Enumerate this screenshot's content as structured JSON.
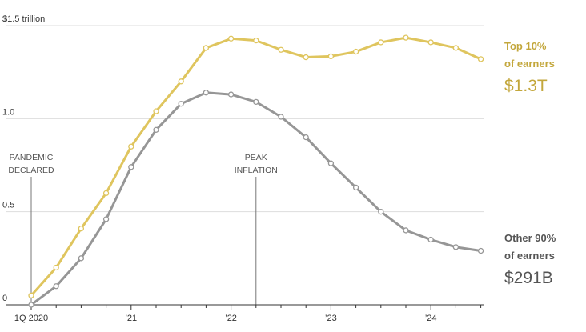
{
  "chart_data": {
    "type": "line",
    "x": [
      "1Q 2020",
      "2Q 2020",
      "3Q 2020",
      "4Q 2020",
      "1Q 2021",
      "2Q 2021",
      "3Q 2021",
      "4Q 2021",
      "1Q 2022",
      "2Q 2022",
      "3Q 2022",
      "4Q 2022",
      "1Q 2023",
      "2Q 2023",
      "3Q 2023",
      "4Q 2023",
      "1Q 2024",
      "2Q 2024",
      "3Q 2024"
    ],
    "ylim": [
      0,
      1.5
    ],
    "grid": true,
    "y_ticks": [
      {
        "value": 0,
        "label": "0"
      },
      {
        "value": 0.5,
        "label": "0.5"
      },
      {
        "value": 1.0,
        "label": "1.0"
      },
      {
        "value": 1.5,
        "label": "$1.5 trillion"
      }
    ],
    "x_tick_labels": [
      {
        "index": 0,
        "label": "1Q 2020"
      },
      {
        "index": 4,
        "label": "’21"
      },
      {
        "index": 8,
        "label": "’22"
      },
      {
        "index": 12,
        "label": "’23"
      },
      {
        "index": 16,
        "label": "’24"
      }
    ],
    "series": [
      {
        "key": "top",
        "name_line1": "Top 10%",
        "name_line2": "of earners",
        "end_value_label": "$1.3T",
        "color": "#dfc55e",
        "values": [
          0.05,
          0.2,
          0.41,
          0.6,
          0.85,
          1.04,
          1.2,
          1.38,
          1.43,
          1.42,
          1.37,
          1.33,
          1.335,
          1.36,
          1.41,
          1.435,
          1.41,
          1.38,
          1.32
        ]
      },
      {
        "key": "other",
        "name_line1": "Other 90%",
        "name_line2": "of earners",
        "end_value_label": "$291B",
        "color": "#969696",
        "values": [
          0.0,
          0.1,
          0.25,
          0.46,
          0.74,
          0.94,
          1.08,
          1.14,
          1.13,
          1.09,
          1.01,
          0.9,
          0.76,
          0.63,
          0.5,
          0.4,
          0.35,
          0.31,
          0.29
        ]
      }
    ],
    "annotations": [
      {
        "index": 0,
        "line1": "PANDEMIC",
        "line2": "DECLARED"
      },
      {
        "index": 9,
        "line1": "PEAK",
        "line2": "INFLATION"
      }
    ]
  },
  "colors": {
    "top_label": "#c3a73c",
    "other_label": "#555555",
    "grid": "#dddddd",
    "axis": "#333333",
    "annotation_line": "#777777"
  }
}
